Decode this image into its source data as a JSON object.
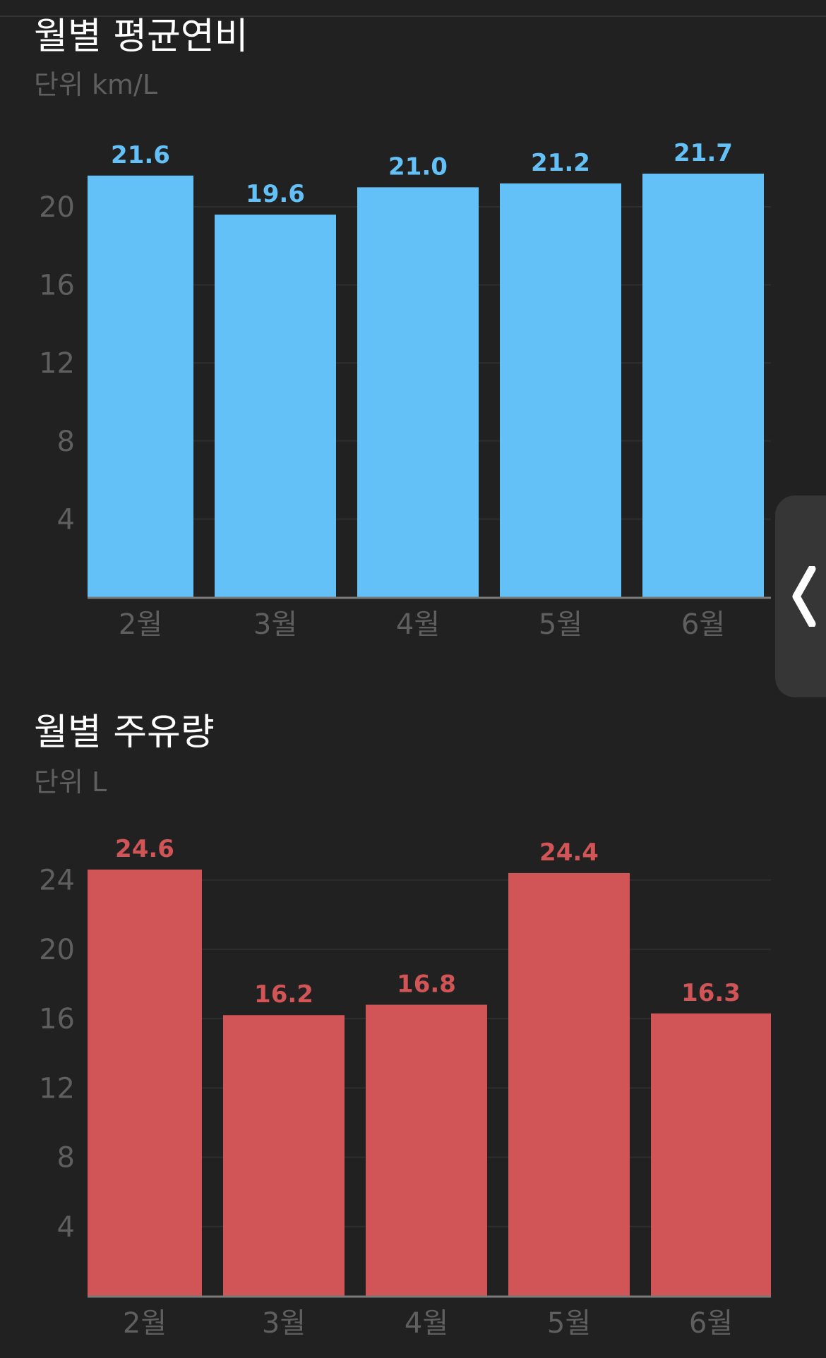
{
  "charts": {
    "efficiency": {
      "title": "월별 평균연비",
      "subtitle": "단위 km/L",
      "color": "#63c1f7",
      "label_color": "#63c1f7"
    },
    "fuel": {
      "title": "월별 주유량",
      "subtitle": "단위 L",
      "color": "#d15457",
      "label_color": "#d15457"
    }
  },
  "side_handle": {
    "icon": "chevron-left-icon"
  },
  "chart_data": [
    {
      "type": "bar",
      "title": "월별 평균연비",
      "subtitle": "단위 km/L",
      "xlabel": "",
      "ylabel": "",
      "categories": [
        "2월",
        "3월",
        "4월",
        "5월",
        "6월"
      ],
      "values": [
        21.6,
        19.6,
        21.0,
        21.2,
        21.7
      ],
      "data_labels": [
        "21.6",
        "19.6",
        "21.0",
        "21.2",
        "21.7"
      ],
      "yticks": [
        4,
        8,
        12,
        16,
        20
      ],
      "ylim": [
        0,
        21.7
      ],
      "grid": true,
      "color": "#63c1f7"
    },
    {
      "type": "bar",
      "title": "월별 주유량",
      "subtitle": "단위 L",
      "xlabel": "",
      "ylabel": "",
      "categories": [
        "2월",
        "3월",
        "4월",
        "5월",
        "6월"
      ],
      "values": [
        24.6,
        16.2,
        16.8,
        24.4,
        16.3
      ],
      "data_labels": [
        "24.6",
        "16.2",
        "16.8",
        "24.4",
        "16.3"
      ],
      "yticks": [
        4,
        8,
        12,
        16,
        20,
        24
      ],
      "ylim": [
        0,
        24.6
      ],
      "grid": true,
      "color": "#d15457"
    }
  ]
}
